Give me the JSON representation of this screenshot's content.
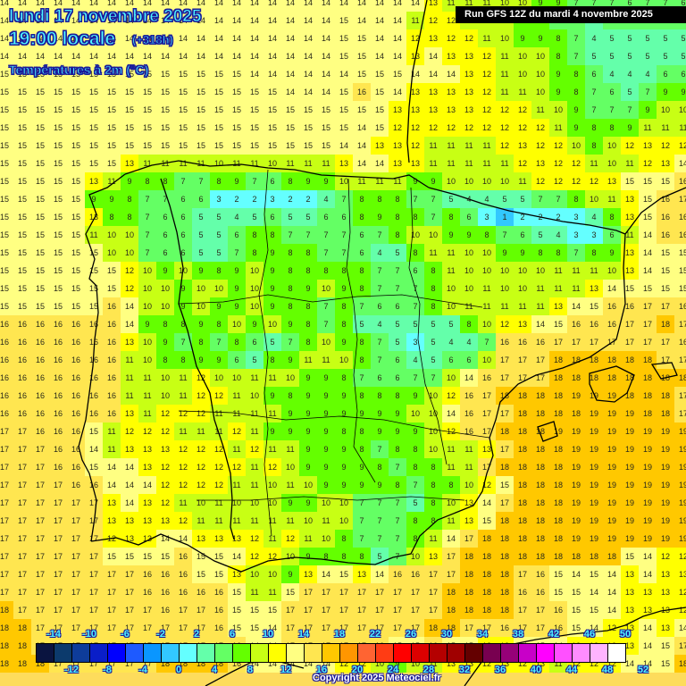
{
  "header": {
    "date": "lundi 17 novembre 2025",
    "time": "19:00 locale",
    "lead": "(+318h)",
    "parameter": "Températures à 2m (°C)",
    "run": "Run GFS 12Z du mardi 4 novembre 2025"
  },
  "footer": {
    "copyright": "Copyright 2025 Meteociel.fr"
  },
  "legend": {
    "colors": [
      "#0a1440",
      "#0c3a6c",
      "#0e3c9a",
      "#0a1ec8",
      "#0000ff",
      "#1e5aff",
      "#0a96ff",
      "#32c8ff",
      "#64ffff",
      "#64ffaa",
      "#64ff64",
      "#64ff00",
      "#c8ff14",
      "#ffff00",
      "#ffff82",
      "#ffe650",
      "#ffc800",
      "#ff9600",
      "#ff6432",
      "#ff3c14",
      "#ff0000",
      "#dc0000",
      "#b40000",
      "#a00000",
      "#640000",
      "#780050",
      "#960078",
      "#c800c8",
      "#ff00ff",
      "#ff50ff",
      "#ff8cff",
      "#ffb4ff",
      "#ffffff"
    ],
    "top_labels": [
      "-14",
      "-10",
      "-6",
      "-2",
      "2",
      "6",
      "10",
      "14",
      "18",
      "22",
      "26",
      "30",
      "34",
      "38",
      "42",
      "46",
      "50"
    ],
    "bottom_labels": [
      "-12",
      "-8",
      "-4",
      "0",
      "4",
      "8",
      "12",
      "16",
      "20",
      "24",
      "28",
      "32",
      "36",
      "40",
      "44",
      "48",
      "52"
    ]
  },
  "chart_data": {
    "type": "heatmap",
    "title": "Températures à 2m (°C) — lundi 17 novembre 2025 19:00 locale (+318h) — Run GFS 12Z du mardi 4 novembre 2025",
    "region": "Iberian Peninsula and Balearic Islands",
    "units": "°C",
    "grid_spacing_px": 20,
    "color_scale_min": -14,
    "color_scale_max": 52,
    "rows": [
      "14 14 14 14 14 14 14 14 14 14 14 14 14 14 14 14 14 14 14 14 14 14 14 14 13 11 11 11 10 10 9 9 7 7 7 6 7 7 6",
      "14 14 14 14 14 14 14 14 14 14 14 14 14 14 14 14 14 14 14 15 14 14 14 11 12 12 11 11 10 9 8 7 6 5 6 6 6 6 6",
      "14 14 14 14 14 14 14 14 14 14 14 14 14 14 14 14 14 14 14 15 15 14 14 12 13 12 12 11 10 9 9 8 7 4 5 5 5 5 5",
      "14 14 14 14 14 14 14 14 14 14 14 14 14 14 14 14 14 14 14 15 15 14 14 13 14 13 13 12 11 10 10 8 7 5 5 5 5 5 5",
      "15 15 15 15 15 15 15 15 15 15 15 15 15 15 14 14 14 14 14 14 15 15 15 14 14 14 13 12 11 10 10 9 8 6 4 4 4 6 6",
      "15 15 15 15 15 15 15 15 15 15 15 15 15 15 15 15 14 14 14 15 16 15 14 13 13 13 13 12 11 11 10 9 8 7 6 5 7 9 9",
      "15 15 15 15 15 15 15 15 15 15 15 15 15 15 15 15 15 15 15 15 15 15 13 13 13 13 13 12 12 12 11 10 9 7 7 7 9 10 10",
      "15 15 15 15 15 15 15 15 15 15 15 15 15 15 15 15 15 15 15 15 14 15 12 12 12 12 12 12 12 12 12 11 9 8 8 9 11 11 11",
      "15 15 15 15 15 15 15 15 15 15 15 15 15 15 15 15 15 15 15 14 14 13 13 12 11 11 11 11 12 13 12 12 10 8 10 12 13 12 12",
      "15 15 15 15 15 15 15 13 11 11 11 11 10 11 11 10 11 11 11 13 14 14 13 13 11 11 11 11 11 12 13 12 12 11 10 11 12 13 14",
      "15 15 15 15 15 13 11 9 8 8 7 7 8 9 7 6 8 9 9 10 11 11 11 9 9 10 10 10 10 11 12 12 12 12 13 15 15 15 16",
      "15 15 15 15 15 9 9 8 7 7 6 6 3 2 2 3 2 2 4 7 8 8 8 7 7 5 4 4 5 5 7 7 8 10 11 13 15 16 17",
      "15 15 15 15 15 13 8 8 7 6 6 5 5 4 5 6 5 5 6 6 8 9 8 8 7 8 6 3 1 2 2 2 3 4 8 13 15 16 16",
      "15 15 15 15 15 11 10 10 7 6 6 5 5 6 8 8 7 7 7 7 6 7 8 10 10 9 9 8 7 6 5 4 3 3 6 11 14 16 16",
      "15 15 15 15 15 15 10 10 7 6 6 5 5 7 8 9 8 8 7 7 6 4 5 8 11 11 10 10 9 9 8 8 7 8 9 13 14 15 15",
      "15 15 15 15 15 15 15 12 10 9 10 9 8 9 10 9 8 8 8 8 8 7 7 6 8 11 10 10 10 10 10 11 11 11 10 13 14 15 15",
      "15 15 15 15 15 15 15 12 10 10 9 10 10 9 10 9 8 9 10 9 8 7 7 7 8 10 10 11 10 10 11 11 11 13 14 15 15 15 15",
      "15 15 15 15 15 15 16 14 10 10 9 10 9 9 10 9 8 8 7 8 7 6 6 7 8 10 11 11 11 11 11 13 14 15 16 16 17 17 16",
      "16 16 16 16 16 16 16 14 9 8 8 9 8 10 9 10 9 8 7 8 5 4 5 5 5 5 8 10 12 13 14 15 16 16 16 17 17 18 17",
      "16 16 16 16 16 16 16 13 10 9 7 8 7 8 6 5 7 8 10 9 8 7 5 3 5 4 4 7 16 16 16 17 17 17 17 17 17 17 16",
      "16 16 16 16 16 16 16 11 10 8 8 9 9 6 5 8 9 11 11 10 8 7 6 4 5 6 6 10 17 17 17 18 18 18 18 18 18 17 17",
      "16 16 16 16 16 16 16 11 11 10 11 12 10 10 11 11 10 9 9 8 7 6 6 7 7 10 14 16 17 17 17 18 18 18 18 18 18 18 18",
      "16 16 16 16 16 16 16 11 11 10 11 12 12 11 10 9 8 9 9 9 8 8 8 9 10 12 16 17 18 18 18 18 19 19 19 18 18 18 17",
      "16 16 16 16 16 16 16 13 11 12 12 12 11 11 11 11 9 9 9 9 9 9 9 10 10 14 16 17 17 18 18 18 18 19 19 19 18 18 17",
      "17 17 16 16 16 15 11 12 12 12 11 11 11 12 11 9 9 9 9 8 8 9 9 9 10 12 16 17 18 18 18 19 19 19 19 19 19 19 19",
      "17 17 17 16 16 14 11 13 13 13 12 12 12 11 12 11 11 9 9 9 8 7 8 8 10 11 11 13 17 18 18 18 19 19 19 19 19 19 19",
      "17 17 17 16 16 15 14 14 13 12 12 12 12 12 11 12 10 9 9 9 9 8 7 8 8 11 11 17 18 18 18 18 19 19 19 19 19 19 19",
      "17 17 17 17 16 16 14 14 14 12 12 12 12 11 11 10 11 10 9 9 9 9 8 7 8 8 10 12 15 18 18 18 19 19 19 19 19 19 19",
      "17 17 17 17 17 17 13 14 13 12 11 10 11 10 10 10 9 9 10 10 7 7 7 5 8 10 13 14 17 18 18 18 19 19 19 19 19 19 19",
      "17 17 17 17 17 17 13 13 13 13 12 11 11 11 11 11 11 10 11 10 7 7 7 8 8 11 13 15 18 18 18 18 19 19 19 19 19 19 19",
      "17 17 17 17 17 17 12 13 13 14 14 13 13 13 12 11 12 11 10 8 7 7 7 8 11 14 17 18 18 18 18 18 19 19 19 19 19 19 19",
      "17 17 17 17 17 17 15 15 15 15 16 15 15 14 12 12 10 9 8 8 8 5 7 10 13 17 18 18 18 18 18 18 18 18 18 15 14 12 12",
      "17 17 17 17 17 17 17 17 16 16 16 15 15 13 10 10 9 13 14 15 13 14 16 16 17 17 18 18 18 17 16 15 14 15 14 13 14 13 13",
      "17 17 17 17 17 17 17 17 16 16 16 16 16 15 11 11 15 17 17 17 17 17 17 17 17 18 18 18 18 16 16 15 15 14 14 13 13 13 12",
      "18 17 17 17 17 17 17 17 17 16 17 17 16 15 15 15 17 17 17 17 17 17 17 17 17 18 18 18 18 17 17 16 15 15 14 13 13 13 12",
      "18 18 17 17 17 17 17 17 17 17 17 17 16 15 15 14 17 17 17 17 17 17 17 17 18 18 17 17 16 17 17 16 15 14 12 13 14 13 14",
      "18 18 17 17 17 17 17 17 17 17 17 17 17 16 14 14 17 17 17 17 17 16 15 15 16 15 15 13 13 14 15 14 13 13 13 13 14 15 17",
      "18 18 18 17 17 17 17 17 17 18 18 18 18 16 14 14 14 14 14 12 12 10 9 10 11 13 13 12 13 12 13 11 12 12 12 14 14 15 18"
    ]
  }
}
